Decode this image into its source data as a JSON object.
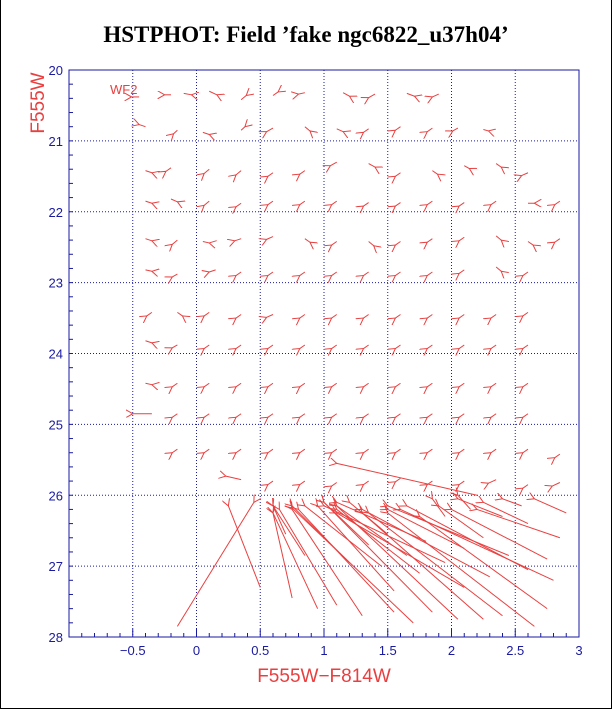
{
  "chart_data": {
    "type": "scatter",
    "title": "HSTPHOT: Field ’fake ngc6822_u37h04’",
    "xlabel": "F555W−F814W",
    "ylabel": "F555W",
    "xlim": [
      -1.0,
      3.0
    ],
    "ylim": [
      28,
      20
    ],
    "y_inverted": true,
    "x_ticks": [
      "−0.5",
      "0",
      "0.5",
      "1",
      "1.5",
      "2",
      "2.5",
      "3"
    ],
    "x_tick_values": [
      -0.5,
      0,
      0.5,
      1,
      1.5,
      2,
      2.5,
      3
    ],
    "y_ticks": [
      "20",
      "21",
      "22",
      "23",
      "24",
      "25",
      "26",
      "27",
      "28"
    ],
    "y_tick_values": [
      20,
      21,
      22,
      23,
      24,
      25,
      26,
      27,
      28
    ],
    "grid": true,
    "annotation": "WF2",
    "colors": {
      "axis": "#1a1aa0",
      "arrows": "#e84040",
      "labels": "#e84040"
    },
    "vectors": [
      {
        "x": -0.45,
        "y": 20.38,
        "dx": -0.06,
        "dy": 0.0
      },
      {
        "x": -0.2,
        "y": 20.35,
        "dx": -0.05,
        "dy": 0.0
      },
      {
        "x": -0.1,
        "y": 20.33,
        "dx": 0.06,
        "dy": 0.02
      },
      {
        "x": 0.1,
        "y": 20.3,
        "dx": 0.06,
        "dy": 0.05
      },
      {
        "x": 0.35,
        "y": 20.42,
        "dx": 0.04,
        "dy": -0.06
      },
      {
        "x": 0.6,
        "y": 20.36,
        "dx": 0.04,
        "dy": -0.05
      },
      {
        "x": 0.85,
        "y": 20.32,
        "dx": -0.05,
        "dy": 0.02
      },
      {
        "x": 1.15,
        "y": 20.32,
        "dx": 0.05,
        "dy": 0.05
      },
      {
        "x": 1.4,
        "y": 20.34,
        "dx": -0.05,
        "dy": 0.05
      },
      {
        "x": 1.65,
        "y": 20.33,
        "dx": 0.06,
        "dy": 0.04
      },
      {
        "x": 1.9,
        "y": 20.34,
        "dx": -0.05,
        "dy": 0.04
      },
      {
        "x": -0.4,
        "y": 20.8,
        "dx": -0.05,
        "dy": -0.03
      },
      {
        "x": -0.15,
        "y": 20.85,
        "dx": -0.03,
        "dy": 0.05
      },
      {
        "x": 0.05,
        "y": 20.88,
        "dx": 0.05,
        "dy": 0.03
      },
      {
        "x": 0.35,
        "y": 20.85,
        "dx": 0.03,
        "dy": -0.05
      },
      {
        "x": 0.6,
        "y": 20.82,
        "dx": -0.05,
        "dy": 0.05
      },
      {
        "x": 0.85,
        "y": 20.8,
        "dx": 0.04,
        "dy": 0.06
      },
      {
        "x": 1.1,
        "y": 20.83,
        "dx": 0.05,
        "dy": 0.04
      },
      {
        "x": 1.35,
        "y": 20.83,
        "dx": -0.04,
        "dy": 0.05
      },
      {
        "x": 1.6,
        "y": 20.8,
        "dx": -0.04,
        "dy": 0.05
      },
      {
        "x": 1.85,
        "y": 20.82,
        "dx": -0.04,
        "dy": 0.05
      },
      {
        "x": 2.05,
        "y": 20.82,
        "dx": -0.04,
        "dy": 0.04
      },
      {
        "x": 2.25,
        "y": 20.84,
        "dx": 0.04,
        "dy": 0.02
      },
      {
        "x": -0.4,
        "y": 21.42,
        "dx": 0.05,
        "dy": 0.03
      },
      {
        "x": -0.2,
        "y": 21.38,
        "dx": -0.04,
        "dy": 0.05
      },
      {
        "x": 0.1,
        "y": 21.4,
        "dx": -0.04,
        "dy": 0.06
      },
      {
        "x": 0.35,
        "y": 21.42,
        "dx": -0.04,
        "dy": 0.06
      },
      {
        "x": 0.6,
        "y": 21.45,
        "dx": -0.04,
        "dy": 0.05
      },
      {
        "x": 0.85,
        "y": 21.42,
        "dx": -0.04,
        "dy": 0.05
      },
      {
        "x": 1.1,
        "y": 21.3,
        "dx": -0.05,
        "dy": 0.05
      },
      {
        "x": 1.35,
        "y": 21.32,
        "dx": 0.05,
        "dy": 0.05
      },
      {
        "x": 1.6,
        "y": 21.45,
        "dx": -0.04,
        "dy": 0.05
      },
      {
        "x": 1.85,
        "y": 21.42,
        "dx": 0.04,
        "dy": 0.05
      },
      {
        "x": 2.1,
        "y": 21.35,
        "dx": 0.04,
        "dy": 0.04
      },
      {
        "x": 2.35,
        "y": 21.32,
        "dx": 0.04,
        "dy": 0.05
      },
      {
        "x": 2.6,
        "y": 21.45,
        "dx": -0.05,
        "dy": 0.04
      },
      {
        "x": -0.4,
        "y": 21.85,
        "dx": 0.05,
        "dy": 0.03
      },
      {
        "x": -0.2,
        "y": 21.82,
        "dx": 0.05,
        "dy": 0.04
      },
      {
        "x": 0.1,
        "y": 21.85,
        "dx": -0.04,
        "dy": 0.06
      },
      {
        "x": 0.35,
        "y": 21.88,
        "dx": -0.04,
        "dy": 0.05
      },
      {
        "x": 0.6,
        "y": 21.85,
        "dx": -0.04,
        "dy": 0.05
      },
      {
        "x": 0.85,
        "y": 21.85,
        "dx": -0.04,
        "dy": 0.05
      },
      {
        "x": 1.1,
        "y": 21.85,
        "dx": -0.04,
        "dy": 0.05
      },
      {
        "x": 1.35,
        "y": 21.87,
        "dx": -0.04,
        "dy": 0.05
      },
      {
        "x": 1.6,
        "y": 21.87,
        "dx": -0.04,
        "dy": 0.05
      },
      {
        "x": 1.85,
        "y": 21.85,
        "dx": -0.04,
        "dy": 0.05
      },
      {
        "x": 2.1,
        "y": 21.87,
        "dx": -0.04,
        "dy": 0.05
      },
      {
        "x": 2.35,
        "y": 21.85,
        "dx": -0.04,
        "dy": 0.05
      },
      {
        "x": 2.6,
        "y": 21.88,
        "dx": 0.05,
        "dy": 0.0
      },
      {
        "x": 2.85,
        "y": 21.85,
        "dx": -0.04,
        "dy": 0.05
      },
      {
        "x": -0.4,
        "y": 22.38,
        "dx": 0.05,
        "dy": 0.03
      },
      {
        "x": -0.15,
        "y": 22.4,
        "dx": -0.04,
        "dy": 0.06
      },
      {
        "x": 0.05,
        "y": 22.42,
        "dx": 0.05,
        "dy": 0.02
      },
      {
        "x": 0.35,
        "y": 22.38,
        "dx": -0.05,
        "dy": 0.03
      },
      {
        "x": 0.6,
        "y": 22.35,
        "dx": -0.05,
        "dy": 0.04
      },
      {
        "x": 0.85,
        "y": 22.38,
        "dx": 0.04,
        "dy": 0.05
      },
      {
        "x": 1.1,
        "y": 22.42,
        "dx": -0.04,
        "dy": 0.05
      },
      {
        "x": 1.35,
        "y": 22.42,
        "dx": 0.04,
        "dy": 0.06
      },
      {
        "x": 1.6,
        "y": 22.42,
        "dx": -0.04,
        "dy": 0.05
      },
      {
        "x": 1.85,
        "y": 22.38,
        "dx": -0.04,
        "dy": 0.05
      },
      {
        "x": 2.1,
        "y": 22.36,
        "dx": -0.04,
        "dy": 0.05
      },
      {
        "x": 2.35,
        "y": 22.34,
        "dx": 0.04,
        "dy": 0.06
      },
      {
        "x": 2.6,
        "y": 22.42,
        "dx": 0.04,
        "dy": 0.05
      },
      {
        "x": 2.85,
        "y": 22.38,
        "dx": -0.04,
        "dy": 0.05
      },
      {
        "x": -0.4,
        "y": 22.82,
        "dx": 0.05,
        "dy": 0.02
      },
      {
        "x": -0.15,
        "y": 22.88,
        "dx": -0.04,
        "dy": 0.04
      },
      {
        "x": 0.15,
        "y": 22.82,
        "dx": -0.05,
        "dy": 0.03
      },
      {
        "x": 0.35,
        "y": 22.85,
        "dx": -0.04,
        "dy": 0.05
      },
      {
        "x": 0.6,
        "y": 22.85,
        "dx": -0.04,
        "dy": 0.05
      },
      {
        "x": 0.85,
        "y": 22.85,
        "dx": -0.04,
        "dy": 0.05
      },
      {
        "x": 1.1,
        "y": 22.85,
        "dx": -0.04,
        "dy": 0.05
      },
      {
        "x": 1.35,
        "y": 22.85,
        "dx": -0.04,
        "dy": 0.05
      },
      {
        "x": 1.6,
        "y": 22.85,
        "dx": -0.04,
        "dy": 0.05
      },
      {
        "x": 1.85,
        "y": 22.85,
        "dx": -0.04,
        "dy": 0.05
      },
      {
        "x": 2.1,
        "y": 22.82,
        "dx": -0.04,
        "dy": 0.05
      },
      {
        "x": 2.35,
        "y": 22.78,
        "dx": 0.04,
        "dy": 0.06
      },
      {
        "x": 2.6,
        "y": 22.85,
        "dx": -0.04,
        "dy": 0.05
      },
      {
        "x": -0.35,
        "y": 23.42,
        "dx": -0.04,
        "dy": 0.05
      },
      {
        "x": -0.15,
        "y": 23.42,
        "dx": 0.04,
        "dy": 0.05
      },
      {
        "x": 0.1,
        "y": 23.42,
        "dx": -0.04,
        "dy": 0.05
      },
      {
        "x": 0.35,
        "y": 23.45,
        "dx": -0.04,
        "dy": 0.05
      },
      {
        "x": 0.6,
        "y": 23.45,
        "dx": -0.05,
        "dy": 0.04
      },
      {
        "x": 0.85,
        "y": 23.45,
        "dx": -0.04,
        "dy": 0.05
      },
      {
        "x": 1.1,
        "y": 23.45,
        "dx": -0.04,
        "dy": 0.05
      },
      {
        "x": 1.35,
        "y": 23.45,
        "dx": -0.04,
        "dy": 0.05
      },
      {
        "x": 1.6,
        "y": 23.45,
        "dx": -0.04,
        "dy": 0.05
      },
      {
        "x": 1.85,
        "y": 23.45,
        "dx": -0.04,
        "dy": 0.05
      },
      {
        "x": 2.1,
        "y": 23.45,
        "dx": -0.04,
        "dy": 0.05
      },
      {
        "x": 2.35,
        "y": 23.45,
        "dx": -0.04,
        "dy": 0.05
      },
      {
        "x": 2.6,
        "y": 23.42,
        "dx": -0.04,
        "dy": 0.05
      },
      {
        "x": -0.4,
        "y": 23.82,
        "dx": 0.05,
        "dy": 0.03
      },
      {
        "x": -0.15,
        "y": 23.88,
        "dx": -0.04,
        "dy": 0.04
      },
      {
        "x": 0.1,
        "y": 23.88,
        "dx": -0.04,
        "dy": 0.05
      },
      {
        "x": 0.35,
        "y": 23.88,
        "dx": -0.04,
        "dy": 0.05
      },
      {
        "x": 0.6,
        "y": 23.88,
        "dx": -0.04,
        "dy": 0.05
      },
      {
        "x": 0.85,
        "y": 23.88,
        "dx": -0.04,
        "dy": 0.05
      },
      {
        "x": 1.1,
        "y": 23.88,
        "dx": -0.04,
        "dy": 0.05
      },
      {
        "x": 1.35,
        "y": 23.88,
        "dx": -0.04,
        "dy": 0.05
      },
      {
        "x": 1.6,
        "y": 23.88,
        "dx": -0.04,
        "dy": 0.05
      },
      {
        "x": 1.85,
        "y": 23.88,
        "dx": -0.04,
        "dy": 0.05
      },
      {
        "x": 2.1,
        "y": 23.88,
        "dx": -0.04,
        "dy": 0.05
      },
      {
        "x": 2.35,
        "y": 23.88,
        "dx": -0.04,
        "dy": 0.05
      },
      {
        "x": 2.6,
        "y": 23.88,
        "dx": -0.04,
        "dy": 0.05
      },
      {
        "x": -0.4,
        "y": 24.42,
        "dx": 0.05,
        "dy": 0.02
      },
      {
        "x": -0.15,
        "y": 24.42,
        "dx": -0.04,
        "dy": 0.05
      },
      {
        "x": 0.1,
        "y": 24.42,
        "dx": -0.04,
        "dy": 0.05
      },
      {
        "x": 0.35,
        "y": 24.42,
        "dx": -0.04,
        "dy": 0.05
      },
      {
        "x": 0.6,
        "y": 24.42,
        "dx": -0.04,
        "dy": 0.05
      },
      {
        "x": 0.85,
        "y": 24.42,
        "dx": -0.04,
        "dy": 0.05
      },
      {
        "x": 1.1,
        "y": 24.42,
        "dx": -0.04,
        "dy": 0.05
      },
      {
        "x": 1.35,
        "y": 24.42,
        "dx": -0.04,
        "dy": 0.05
      },
      {
        "x": 1.6,
        "y": 24.42,
        "dx": -0.04,
        "dy": 0.05
      },
      {
        "x": 1.85,
        "y": 24.42,
        "dx": -0.04,
        "dy": 0.05
      },
      {
        "x": 2.1,
        "y": 24.42,
        "dx": -0.04,
        "dy": 0.05
      },
      {
        "x": 2.35,
        "y": 24.42,
        "dx": -0.04,
        "dy": 0.05
      },
      {
        "x": 2.6,
        "y": 24.42,
        "dx": -0.04,
        "dy": 0.05
      },
      {
        "x": -0.35,
        "y": 24.85,
        "dx": -0.15,
        "dy": 0.0
      },
      {
        "x": -0.15,
        "y": 24.85,
        "dx": -0.04,
        "dy": 0.05
      },
      {
        "x": 0.1,
        "y": 24.85,
        "dx": -0.04,
        "dy": 0.05
      },
      {
        "x": 0.35,
        "y": 24.85,
        "dx": -0.04,
        "dy": 0.05
      },
      {
        "x": 0.6,
        "y": 24.85,
        "dx": -0.04,
        "dy": 0.05
      },
      {
        "x": 0.85,
        "y": 24.85,
        "dx": -0.04,
        "dy": 0.05
      },
      {
        "x": 1.1,
        "y": 24.85,
        "dx": -0.04,
        "dy": 0.05
      },
      {
        "x": 1.35,
        "y": 24.85,
        "dx": -0.04,
        "dy": 0.05
      },
      {
        "x": 1.6,
        "y": 24.85,
        "dx": -0.04,
        "dy": 0.05
      },
      {
        "x": 1.85,
        "y": 24.85,
        "dx": -0.04,
        "dy": 0.05
      },
      {
        "x": 2.1,
        "y": 24.85,
        "dx": -0.04,
        "dy": 0.05
      },
      {
        "x": 2.35,
        "y": 24.85,
        "dx": -0.04,
        "dy": 0.05
      },
      {
        "x": 2.6,
        "y": 24.85,
        "dx": -0.04,
        "dy": 0.05
      },
      {
        "x": -0.15,
        "y": 25.35,
        "dx": -0.04,
        "dy": 0.05
      },
      {
        "x": 0.1,
        "y": 25.35,
        "dx": -0.04,
        "dy": 0.05
      },
      {
        "x": 0.35,
        "y": 25.35,
        "dx": -0.04,
        "dy": 0.05
      },
      {
        "x": 0.6,
        "y": 25.35,
        "dx": -0.04,
        "dy": 0.05
      },
      {
        "x": 0.85,
        "y": 25.35,
        "dx": -0.04,
        "dy": 0.05
      },
      {
        "x": 1.1,
        "y": 25.35,
        "dx": -0.04,
        "dy": 0.05
      },
      {
        "x": 1.35,
        "y": 25.35,
        "dx": -0.04,
        "dy": 0.05
      },
      {
        "x": 1.6,
        "y": 25.35,
        "dx": -0.04,
        "dy": 0.05
      },
      {
        "x": 1.85,
        "y": 25.35,
        "dx": -0.04,
        "dy": 0.05
      },
      {
        "x": 2.1,
        "y": 25.35,
        "dx": -0.04,
        "dy": 0.05
      },
      {
        "x": 2.35,
        "y": 25.35,
        "dx": -0.04,
        "dy": 0.05
      },
      {
        "x": 2.6,
        "y": 25.35,
        "dx": -0.04,
        "dy": 0.05
      },
      {
        "x": 2.85,
        "y": 25.42,
        "dx": -0.04,
        "dy": 0.05
      },
      {
        "x": 0.35,
        "y": 25.78,
        "dx": -0.12,
        "dy": -0.05
      },
      {
        "x": 0.6,
        "y": 25.8,
        "dx": -0.04,
        "dy": 0.05
      },
      {
        "x": 0.85,
        "y": 25.8,
        "dx": -0.04,
        "dy": 0.05
      },
      {
        "x": 1.1,
        "y": 25.82,
        "dx": -0.04,
        "dy": 0.05
      },
      {
        "x": 1.35,
        "y": 25.8,
        "dx": -0.04,
        "dy": 0.05
      },
      {
        "x": 1.6,
        "y": 25.76,
        "dx": -0.04,
        "dy": 0.05
      },
      {
        "x": 1.85,
        "y": 25.8,
        "dx": -0.04,
        "dy": 0.05
      },
      {
        "x": 2.1,
        "y": 25.8,
        "dx": -0.04,
        "dy": 0.05
      },
      {
        "x": 2.35,
        "y": 25.78,
        "dx": -0.06,
        "dy": 0.05
      },
      {
        "x": 2.6,
        "y": 25.85,
        "dx": -0.04,
        "dy": 0.05
      },
      {
        "x": 2.85,
        "y": 25.82,
        "dx": -0.06,
        "dy": 0.05
      },
      {
        "x": -0.15,
        "y": 27.85,
        "dx": 0.6,
        "dy": -1.75
      },
      {
        "x": 0.5,
        "y": 27.3,
        "dx": -0.25,
        "dy": -1.15
      },
      {
        "x": 0.75,
        "y": 27.45,
        "dx": -0.15,
        "dy": -1.2
      },
      {
        "x": 0.95,
        "y": 27.6,
        "dx": -0.35,
        "dy": -1.35
      },
      {
        "x": 1.1,
        "y": 27.55,
        "dx": -0.45,
        "dy": -1.35
      },
      {
        "x": 1.3,
        "y": 27.7,
        "dx": -0.55,
        "dy": -1.5
      },
      {
        "x": 1.55,
        "y": 27.65,
        "dx": -0.75,
        "dy": -1.45
      },
      {
        "x": 1.7,
        "y": 27.8,
        "dx": -0.95,
        "dy": -1.62
      },
      {
        "x": 1.55,
        "y": 27.35,
        "dx": -0.6,
        "dy": -1.2
      },
      {
        "x": 1.85,
        "y": 27.65,
        "dx": -0.85,
        "dy": -1.55
      },
      {
        "x": 2.05,
        "y": 27.75,
        "dx": -0.95,
        "dy": -1.6
      },
      {
        "x": 2.25,
        "y": 27.75,
        "dx": -0.95,
        "dy": -1.5
      },
      {
        "x": 2.4,
        "y": 27.7,
        "dx": -1.05,
        "dy": -1.45
      },
      {
        "x": 2.65,
        "y": 27.85,
        "dx": -1.15,
        "dy": -1.6
      },
      {
        "x": 2.75,
        "y": 27.6,
        "dx": -1.0,
        "dy": -1.3
      },
      {
        "x": 2.8,
        "y": 27.2,
        "dx": -1.2,
        "dy": -1.0
      },
      {
        "x": 2.6,
        "y": 27.05,
        "dx": -0.95,
        "dy": -0.9
      },
      {
        "x": 2.75,
        "y": 26.9,
        "dx": -0.75,
        "dy": -0.7
      },
      {
        "x": 2.85,
        "y": 26.6,
        "dx": -0.65,
        "dy": -0.4
      },
      {
        "x": 2.6,
        "y": 26.4,
        "dx": -0.35,
        "dy": -0.3
      },
      {
        "x": 2.4,
        "y": 26.3,
        "dx": -0.35,
        "dy": -0.25
      },
      {
        "x": 2.45,
        "y": 26.85,
        "dx": -0.95,
        "dy": -0.7
      },
      {
        "x": 2.3,
        "y": 27.15,
        "dx": -1.0,
        "dy": -0.95
      },
      {
        "x": 2.1,
        "y": 27.3,
        "dx": -1.0,
        "dy": -1.05
      },
      {
        "x": 1.95,
        "y": 26.95,
        "dx": -0.95,
        "dy": -0.8
      },
      {
        "x": 2.1,
        "y": 26.75,
        "dx": -0.6,
        "dy": -0.55
      },
      {
        "x": 2.25,
        "y": 26.6,
        "dx": -0.35,
        "dy": -0.45
      },
      {
        "x": 1.8,
        "y": 26.65,
        "dx": -0.7,
        "dy": -0.55
      },
      {
        "x": 1.75,
        "y": 27.1,
        "dx": -0.65,
        "dy": -0.9
      },
      {
        "x": 1.65,
        "y": 26.85,
        "dx": -0.55,
        "dy": -0.7
      },
      {
        "x": 2.9,
        "y": 26.25,
        "dx": -0.25,
        "dy": -0.2
      },
      {
        "x": 2.15,
        "y": 26.2,
        "dx": -0.1,
        "dy": -0.2
      },
      {
        "x": 2.55,
        "y": 26.15,
        "dx": -0.15,
        "dy": -0.1
      },
      {
        "x": 1.95,
        "y": 26.3,
        "dx": -0.1,
        "dy": -0.25
      },
      {
        "x": 1.5,
        "y": 26.55,
        "dx": -0.3,
        "dy": -0.45
      },
      {
        "x": 1.35,
        "y": 26.7,
        "dx": -0.35,
        "dy": -0.6
      },
      {
        "x": 2.2,
        "y": 26.0,
        "dx": -1.1,
        "dy": -0.45
      },
      {
        "x": 0.85,
        "y": 26.85,
        "dx": -0.25,
        "dy": -0.7
      },
      {
        "x": 0.7,
        "y": 26.55,
        "dx": -0.1,
        "dy": -0.4
      },
      {
        "x": 1.2,
        "y": 26.95,
        "dx": -0.45,
        "dy": -0.8
      },
      {
        "x": 1.45,
        "y": 27.0,
        "dx": -0.6,
        "dy": -0.85
      }
    ]
  }
}
